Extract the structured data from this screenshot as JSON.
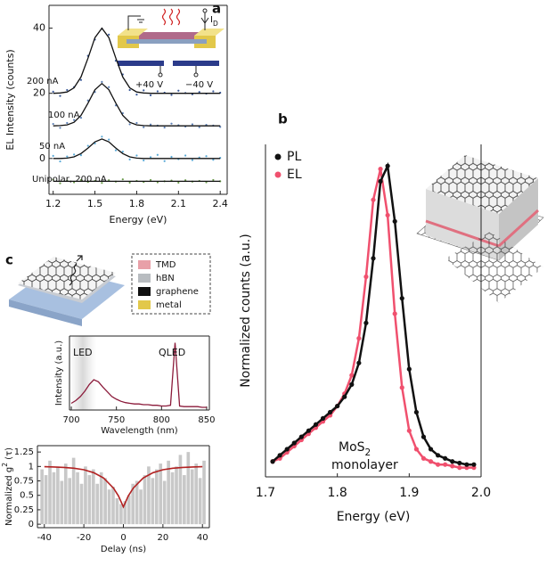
{
  "panels": [
    "a",
    "b",
    "c"
  ],
  "materials_legend": [
    {
      "label": "TMD",
      "color": "#e8a0a8"
    },
    {
      "label": "hBN",
      "color": "#b8bcc0"
    },
    {
      "label": "graphene",
      "color": "#111111"
    },
    {
      "label": "metal",
      "color": "#e2c84a"
    }
  ],
  "chart_data": [
    {
      "type": "line",
      "xlabel": "Energy (eV)",
      "ylabel": "EL Intensity (counts)",
      "xlim": [
        1.17,
        2.45
      ],
      "ylim": [
        -11,
        47
      ],
      "xticks": [
        1.2,
        1.5,
        1.8,
        2.1,
        2.4
      ],
      "yticks": [
        0,
        20,
        40
      ],
      "annotations": [
        {
          "text": "200 nA"
        },
        {
          "text": "100 nA"
        },
        {
          "text": "50 nA"
        },
        {
          "text": "Unipolar, 200 nA"
        },
        {
          "text": "+40 V"
        },
        {
          "text": "−40 V"
        },
        {
          "text": "I",
          "sub": "D"
        }
      ],
      "x": [
        1.2,
        1.25,
        1.3,
        1.35,
        1.4,
        1.45,
        1.5,
        1.55,
        1.6,
        1.65,
        1.7,
        1.75,
        1.8,
        1.85,
        1.9,
        1.95,
        2.0,
        2.05,
        2.1,
        2.15,
        2.2,
        2.25,
        2.3,
        2.35,
        2.4
      ],
      "series": [
        {
          "color": "#3b5a9a",
          "marker": true,
          "values": [
            20.5,
            19.2,
            21.0,
            21.9,
            24.1,
            31.5,
            36.5,
            39.8,
            38.0,
            30.0,
            25.8,
            21.0,
            19.6,
            20.9,
            19.4,
            20.6,
            20.2,
            19.5,
            20.8,
            20.1,
            19.7,
            20.4,
            19.9,
            20.6,
            20.2
          ]
        },
        {
          "color": "#111111",
          "marker": false,
          "values": [
            20,
            20.1,
            20.4,
            21.7,
            25,
            30.8,
            37.1,
            40,
            37.1,
            30.8,
            25,
            21.7,
            20.4,
            20.1,
            20,
            20,
            20,
            20,
            20,
            20,
            20,
            20,
            20,
            20,
            20
          ]
        },
        {
          "color": "#5b7fb5",
          "marker": true,
          "values": [
            10.6,
            9.4,
            10.9,
            11.8,
            12.5,
            17.8,
            20.4,
            23.5,
            21.9,
            16.3,
            13.9,
            10.5,
            10.9,
            9.6,
            10.4,
            10.1,
            9.5,
            10.7,
            10.2,
            9.8,
            10.5,
            9.6,
            10.3,
            10.1,
            9.7
          ]
        },
        {
          "color": "#111111",
          "marker": false,
          "values": [
            10,
            10.1,
            10.3,
            11.1,
            13.2,
            17,
            21.1,
            23,
            21.1,
            17,
            13.2,
            11.1,
            10.3,
            10.1,
            10,
            10,
            10,
            10,
            10,
            10,
            10,
            10,
            10,
            10,
            10
          ]
        },
        {
          "color": "#5aa9d6",
          "marker": true,
          "values": [
            0.8,
            -0.9,
            0.6,
            1.2,
            1.0,
            3.9,
            4.6,
            6.7,
            5.8,
            2.5,
            2.1,
            -0.3,
            0.9,
            -0.6,
            0.4,
            1.1,
            -0.8,
            0.5,
            -0.2,
            0.9,
            -0.5,
            0.3,
            0.7,
            -0.4,
            0.2
          ]
        },
        {
          "color": "#111111",
          "marker": false,
          "values": [
            0,
            0,
            0.1,
            0.5,
            1.5,
            3.2,
            5.1,
            6,
            5.1,
            3.2,
            1.5,
            0.5,
            0.1,
            0,
            0,
            0,
            0,
            0,
            0,
            0,
            0,
            0,
            0,
            0,
            0
          ]
        },
        {
          "color": "#6a9a4a",
          "marker": true,
          "values": [
            -6.5,
            -7.6,
            -6.8,
            -7.3,
            -6.6,
            -7.2,
            -6.9,
            -7.5,
            -6.7,
            -7.1,
            -6.4,
            -7.4,
            -6.9,
            -7.2,
            -6.6,
            -7.3,
            -7.0,
            -6.8,
            -7.4,
            -6.7,
            -7.1,
            -6.9,
            -7.3,
            -6.6,
            -7.0
          ]
        },
        {
          "color": "#111111",
          "marker": false,
          "values": [
            -7,
            -7,
            -7,
            -7,
            -7,
            -7,
            -7,
            -7,
            -7,
            -7,
            -7,
            -7,
            -7,
            -7,
            -7,
            -7,
            -7,
            -7,
            -7,
            -7,
            -7,
            -7,
            -7,
            -7,
            -7
          ]
        }
      ]
    },
    {
      "type": "scatter",
      "xlabel": "Energy (eV)",
      "ylabel": "Normalized counts (a.u.)",
      "xlim": [
        1.7,
        2.0
      ],
      "ylim": [
        -0.03,
        1.05
      ],
      "xticks": [
        1.7,
        1.8,
        1.9,
        {
          "value": 2,
          "label": "2.0"
        }
      ],
      "annotations": [
        {
          "text": "MoS",
          "sub": "2"
        },
        {
          "text": "monolayer"
        }
      ],
      "x": [
        1.71,
        1.72,
        1.73,
        1.74,
        1.75,
        1.76,
        1.77,
        1.78,
        1.79,
        1.8,
        1.81,
        1.82,
        1.83,
        1.84,
        1.85,
        1.86,
        1.87,
        1.88,
        1.89,
        1.9,
        1.91,
        1.92,
        1.93,
        1.94,
        1.95,
        1.96,
        1.97,
        1.98,
        1.99
      ],
      "series": [
        {
          "name": "EL",
          "color": "#f0506e",
          "values": [
            0.02,
            0.03,
            0.05,
            0.07,
            0.09,
            0.11,
            0.13,
            0.15,
            0.17,
            0.2,
            0.24,
            0.3,
            0.42,
            0.62,
            0.87,
            0.97,
            0.82,
            0.5,
            0.26,
            0.12,
            0.06,
            0.03,
            0.02,
            0.01,
            0.01,
            0.005,
            0,
            0,
            0
          ]
        },
        {
          "name": "PL",
          "color": "#111111",
          "values": [
            0.02,
            0.04,
            0.06,
            0.08,
            0.1,
            0.12,
            0.14,
            0.16,
            0.18,
            0.2,
            0.23,
            0.27,
            0.34,
            0.47,
            0.68,
            0.93,
            0.98,
            0.8,
            0.55,
            0.32,
            0.18,
            0.1,
            0.06,
            0.04,
            0.03,
            0.02,
            0.015,
            0.01,
            0.01
          ]
        }
      ]
    },
    {
      "type": "line",
      "xlabel": "Wavelength (nm)",
      "ylabel": "Intensity (a.u.)",
      "xlim": [
        698,
        853
      ],
      "ylim": [
        0,
        1.1
      ],
      "xticks": [
        700,
        750,
        800,
        850
      ],
      "annotations": [
        {
          "text": "LED"
        },
        {
          "text": "QLED"
        }
      ],
      "x": [
        700,
        705,
        710,
        715,
        720,
        725,
        730,
        735,
        740,
        745,
        750,
        755,
        760,
        765,
        770,
        775,
        780,
        785,
        790,
        795,
        800,
        805,
        810,
        815,
        820,
        825,
        830,
        835,
        840,
        845,
        850
      ],
      "series": [
        {
          "color": "#8b1a3a",
          "marker": false,
          "values": [
            0.1,
            0.14,
            0.2,
            0.28,
            0.38,
            0.45,
            0.42,
            0.34,
            0.27,
            0.2,
            0.16,
            0.13,
            0.11,
            0.1,
            0.09,
            0.09,
            0.08,
            0.08,
            0.07,
            0.07,
            0.06,
            0.06,
            0.07,
            1.0,
            0.06,
            0.05,
            0.05,
            0.05,
            0.05,
            0.04,
            0.04
          ]
        }
      ]
    },
    {
      "type": "histogram",
      "xlabel": "Delay (ns)",
      "ylabel": {
        "text": "Normalized g",
        "sup": "2",
        "after": " (τ)"
      },
      "xlim": [
        -43.5,
        43.5
      ],
      "ylim": [
        -0.06,
        1.36
      ],
      "xticks": [
        -40,
        -20,
        0,
        20,
        40
      ],
      "yticks": [
        0,
        0.25,
        0.5,
        0.75,
        1,
        1.25
      ],
      "color": "#c8c8c8",
      "bins": [
        -42,
        -40,
        -38,
        -36,
        -34,
        -32,
        -30,
        -28,
        -26,
        -24,
        -22,
        -20,
        -18,
        -16,
        -14,
        -12,
        -10,
        -8,
        -6,
        -4,
        -2,
        0,
        2,
        4,
        6,
        8,
        10,
        12,
        14,
        16,
        18,
        20,
        22,
        24,
        26,
        28,
        30,
        32,
        34,
        36,
        38,
        40,
        42
      ],
      "values": [
        0.95,
        0.85,
        1.1,
        0.9,
        1.0,
        0.75,
        1.05,
        0.8,
        1.15,
        0.9,
        0.7,
        1.0,
        0.85,
        0.95,
        0.7,
        0.9,
        0.8,
        0.6,
        0.65,
        0.45,
        0.35,
        0.4,
        0.5,
        0.7,
        0.75,
        0.6,
        0.85,
        1.0,
        0.8,
        0.95,
        1.05,
        0.75,
        1.1,
        0.9,
        1.0,
        1.2,
        0.85,
        1.25,
        0.95,
        1.05,
        0.8,
        1.1
      ],
      "fit": {
        "color": "#b22222",
        "x": [
          -40,
          -35,
          -30,
          -25,
          -20,
          -15,
          -10,
          -5,
          -2.5,
          0,
          2.5,
          5,
          10,
          15,
          20,
          25,
          30,
          35,
          40
        ],
        "values": [
          0.995,
          0.991,
          0.984,
          0.969,
          0.943,
          0.893,
          0.8,
          0.625,
          0.489,
          0.3,
          0.489,
          0.625,
          0.8,
          0.893,
          0.943,
          0.969,
          0.984,
          0.991,
          0.995
        ]
      }
    }
  ]
}
